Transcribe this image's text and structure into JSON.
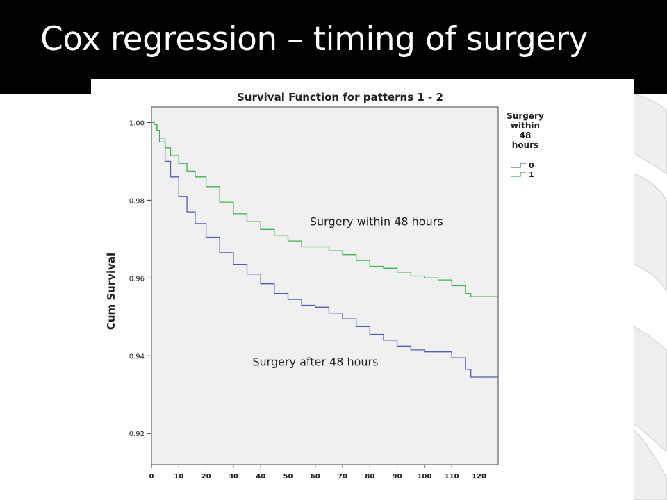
{
  "slide": {
    "title": "Cox regression – timing of surgery"
  },
  "colors": {
    "title_bar": "#000000",
    "title_text": "#ffffff",
    "plot_background": "#f0f0f0",
    "series_0": "#4f5fb0",
    "series_1": "#3fb34f"
  },
  "chart_data": {
    "type": "line",
    "title": "Survival Function for patterns 1 - 2",
    "xlabel": "",
    "ylabel": "Cum Survival",
    "xlim": [
      0,
      127
    ],
    "ylim": [
      0.912,
      1.004
    ],
    "x_ticks": [
      0,
      10,
      20,
      30,
      40,
      50,
      60,
      70,
      80,
      90,
      100,
      110,
      120
    ],
    "y_ticks": [
      0.92,
      0.94,
      0.96,
      0.98,
      1.0
    ],
    "y_tick_labels": [
      "0.92",
      "0.94",
      "0.96",
      "0.98",
      "1.00"
    ],
    "legend": {
      "title": "Surgery within 48 hours",
      "title_lines": [
        "Surgery",
        "within",
        "48",
        "hours"
      ],
      "placement": "right, outside plot",
      "entries": [
        "0",
        "1"
      ]
    },
    "grid": false,
    "series": [
      {
        "name": "0",
        "color": "#4f5fb0",
        "x": [
          0,
          1,
          2,
          3,
          5,
          7,
          10,
          13,
          16,
          20,
          25,
          30,
          35,
          40,
          45,
          50,
          55,
          60,
          65,
          70,
          75,
          80,
          85,
          90,
          95,
          100,
          105,
          110,
          115,
          117,
          127
        ],
        "y": [
          1.0,
          0.9995,
          0.998,
          0.995,
          0.99,
          0.986,
          0.981,
          0.977,
          0.974,
          0.9705,
          0.9665,
          0.9635,
          0.961,
          0.9585,
          0.956,
          0.9545,
          0.953,
          0.9525,
          0.951,
          0.9495,
          0.9475,
          0.9455,
          0.944,
          0.9425,
          0.9415,
          0.941,
          0.941,
          0.9395,
          0.9365,
          0.9345,
          0.9345
        ]
      },
      {
        "name": "1",
        "color": "#3fb34f",
        "x": [
          0,
          1,
          2,
          3,
          5,
          7,
          10,
          13,
          16,
          20,
          25,
          30,
          35,
          40,
          45,
          50,
          55,
          60,
          65,
          70,
          75,
          80,
          85,
          90,
          95,
          100,
          105,
          110,
          115,
          117,
          127
        ],
        "y": [
          1.0,
          0.9995,
          0.998,
          0.996,
          0.9935,
          0.9915,
          0.9895,
          0.9875,
          0.986,
          0.9835,
          0.9795,
          0.9765,
          0.9745,
          0.9725,
          0.971,
          0.9695,
          0.968,
          0.968,
          0.967,
          0.966,
          0.9645,
          0.963,
          0.9625,
          0.9615,
          0.9605,
          0.96,
          0.9595,
          0.958,
          0.956,
          0.9552,
          0.9552
        ]
      }
    ],
    "annotations": [
      {
        "text": "Surgery within 48 hours",
        "x": 58,
        "y": 0.9735
      },
      {
        "text": "Surgery after 48 hours",
        "x": 37,
        "y": 0.9375
      }
    ]
  }
}
